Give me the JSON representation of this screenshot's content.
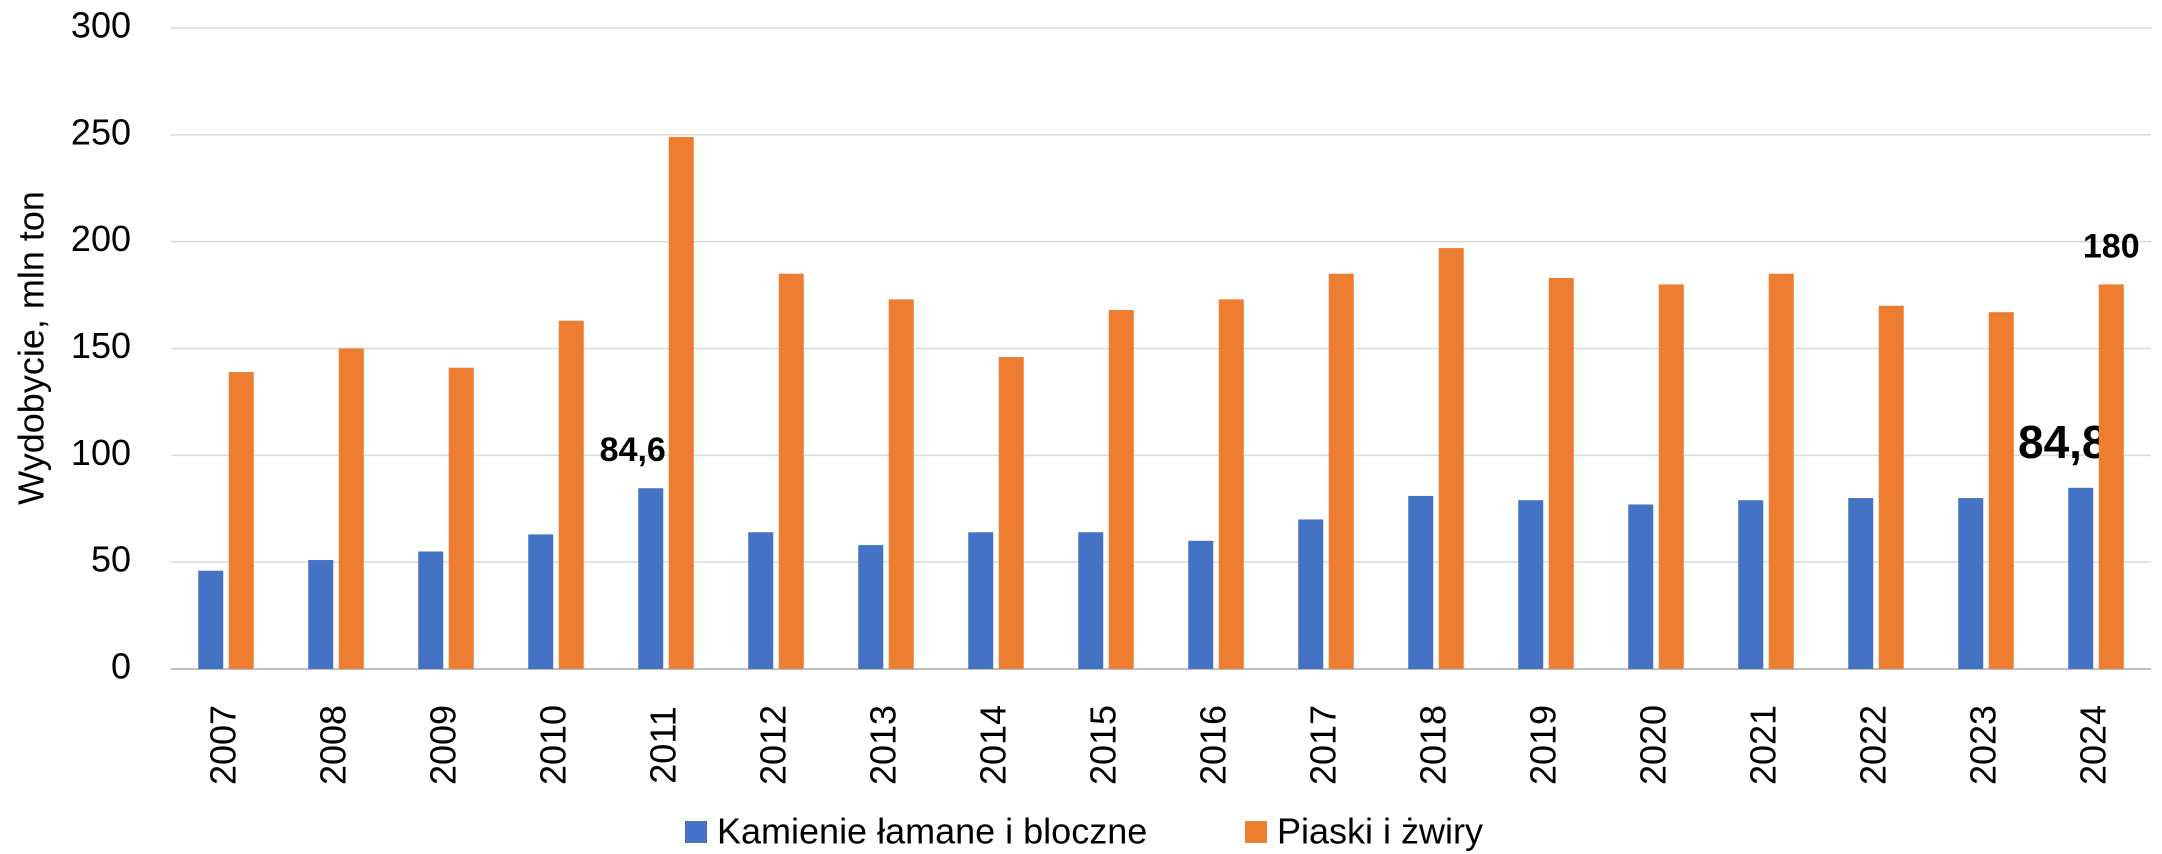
{
  "chart_data": {
    "type": "bar",
    "y_axis_label": "Wydobycie, mln ton",
    "categories": [
      "2007",
      "2008",
      "2009",
      "2010",
      "2011",
      "2012",
      "2013",
      "2014",
      "2015",
      "2016",
      "2017",
      "2018",
      "2019",
      "2020",
      "2021",
      "2022",
      "2023",
      "2024"
    ],
    "series": [
      {
        "name": "Kamienie łamane i bloczne",
        "color": "#4472c4",
        "values": [
          46,
          51,
          55,
          63,
          84.6,
          64,
          58,
          64,
          64,
          60,
          70,
          81,
          79,
          77,
          79,
          80,
          80,
          84.8
        ],
        "value_labels": [
          null,
          null,
          null,
          null,
          "84,6",
          null,
          null,
          null,
          null,
          null,
          null,
          null,
          null,
          null,
          null,
          null,
          null,
          "84,8"
        ]
      },
      {
        "name": "Piaski i żwiry",
        "color": "#ed7d31",
        "values": [
          139,
          150,
          141,
          163,
          249,
          185,
          173,
          146,
          168,
          173,
          185,
          197,
          183,
          180,
          185,
          170,
          167,
          180
        ],
        "value_labels": [
          null,
          null,
          null,
          null,
          null,
          null,
          null,
          null,
          null,
          null,
          null,
          null,
          null,
          null,
          null,
          null,
          null,
          "180"
        ]
      }
    ],
    "ylim": [
      0,
      300
    ],
    "yticks": [
      0,
      50,
      100,
      150,
      200,
      250,
      300
    ],
    "grid": true,
    "legend": "bottom"
  }
}
